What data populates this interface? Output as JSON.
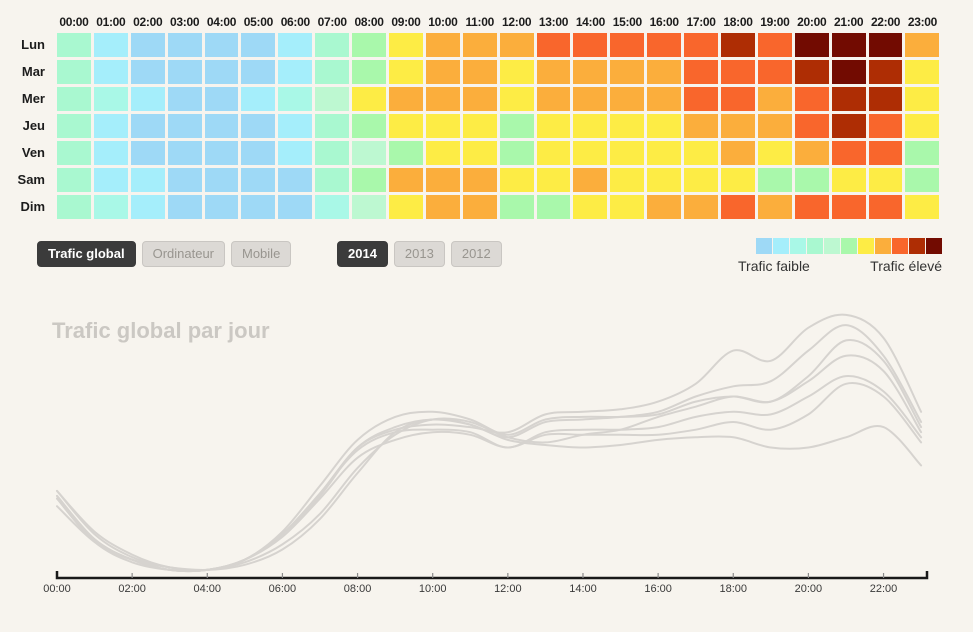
{
  "controls": {
    "dataset_buttons": [
      {
        "label": "Trafic global",
        "active": true
      },
      {
        "label": "Ordinateur",
        "active": false
      },
      {
        "label": "Mobile",
        "active": false
      }
    ],
    "year_buttons": [
      {
        "label": "2014",
        "active": true
      },
      {
        "label": "2013",
        "active": false
      },
      {
        "label": "2012",
        "active": false
      }
    ]
  },
  "legend": {
    "low_label": "Trafic faible",
    "high_label": "Trafic élevé"
  },
  "chart_data": [
    {
      "type": "heatmap",
      "x_categories": [
        "00:00",
        "01:00",
        "02:00",
        "03:00",
        "04:00",
        "05:00",
        "06:00",
        "07:00",
        "08:00",
        "09:00",
        "10:00",
        "11:00",
        "12:00",
        "13:00",
        "14:00",
        "15:00",
        "16:00",
        "17:00",
        "18:00",
        "19:00",
        "20:00",
        "21:00",
        "22:00",
        "23:00"
      ],
      "y_categories": [
        "Lun",
        "Mar",
        "Mer",
        "Jeu",
        "Ven",
        "Sam",
        "Dim"
      ],
      "palette": [
        "#9ed9f6",
        "#a5eefb",
        "#a9f8e7",
        "#a9f8d0",
        "#bdf8d1",
        "#a9f8ab",
        "#fdec45",
        "#fbae3c",
        "#f9662c",
        "#ae2d04",
        "#720b01"
      ],
      "legend_low": "Trafic faible",
      "legend_high": "Trafic élevé",
      "levels": [
        [
          3,
          1,
          0,
          0,
          0,
          0,
          1,
          3,
          5,
          6,
          7,
          7,
          7,
          8,
          8,
          8,
          8,
          8,
          9,
          8,
          10,
          10,
          10,
          7
        ],
        [
          3,
          1,
          0,
          0,
          0,
          0,
          1,
          3,
          5,
          6,
          7,
          7,
          6,
          7,
          7,
          7,
          7,
          8,
          8,
          8,
          9,
          10,
          9,
          6
        ],
        [
          3,
          2,
          1,
          0,
          0,
          1,
          2,
          4,
          6,
          7,
          7,
          7,
          6,
          7,
          7,
          7,
          7,
          8,
          8,
          7,
          8,
          9,
          9,
          6
        ],
        [
          3,
          1,
          0,
          0,
          0,
          0,
          1,
          3,
          5,
          6,
          6,
          6,
          5,
          6,
          6,
          6,
          6,
          7,
          7,
          7,
          8,
          9,
          8,
          6
        ],
        [
          3,
          1,
          0,
          0,
          0,
          0,
          1,
          3,
          4,
          5,
          6,
          6,
          5,
          6,
          6,
          6,
          6,
          6,
          7,
          6,
          7,
          8,
          8,
          5
        ],
        [
          3,
          1,
          1,
          0,
          0,
          0,
          0,
          3,
          5,
          7,
          7,
          7,
          6,
          6,
          7,
          6,
          6,
          6,
          6,
          5,
          5,
          6,
          6,
          5
        ],
        [
          3,
          2,
          1,
          0,
          0,
          0,
          0,
          2,
          4,
          6,
          7,
          7,
          5,
          5,
          6,
          6,
          7,
          7,
          8,
          7,
          8,
          8,
          8,
          6
        ]
      ]
    },
    {
      "type": "line",
      "title": "Trafic global par jour",
      "x_hours": [
        0,
        1,
        2,
        3,
        4,
        5,
        6,
        7,
        8,
        9,
        10,
        11,
        12,
        13,
        14,
        15,
        16,
        17,
        18,
        19,
        20,
        21,
        22,
        23
      ],
      "x_tick_labels": [
        "00:00",
        "02:00",
        "04:00",
        "06:00",
        "08:00",
        "10:00",
        "12:00",
        "14:00",
        "16:00",
        "18:00",
        "20:00",
        "22:00"
      ],
      "ylim": [
        0,
        110
      ],
      "grid": false,
      "legend_position": "none",
      "line_color": "#d6d3cf",
      "series": [
        {
          "name": "Lun",
          "values": [
            33,
            16,
            7,
            3,
            2,
            6,
            16,
            32,
            50,
            57,
            59,
            58,
            56,
            63,
            64,
            65,
            68,
            75,
            88,
            84,
            97,
            102,
            93,
            64
          ]
        },
        {
          "name": "Mar",
          "values": [
            31,
            14,
            6,
            2,
            2,
            6,
            16,
            31,
            50,
            58,
            61,
            59,
            54,
            60,
            61,
            62,
            64,
            70,
            74,
            76,
            88,
            98,
            86,
            60
          ]
        },
        {
          "name": "Mer",
          "values": [
            30,
            13,
            6,
            2,
            2,
            6,
            17,
            35,
            53,
            62,
            64,
            61,
            55,
            61,
            62,
            62,
            63,
            68,
            70,
            68,
            78,
            92,
            84,
            58
          ]
        },
        {
          "name": "Jeu",
          "values": [
            30,
            13,
            5,
            2,
            2,
            6,
            16,
            32,
            49,
            56,
            57,
            56,
            50,
            56,
            57,
            57,
            58,
            62,
            64,
            63,
            70,
            78,
            72,
            54
          ]
        },
        {
          "name": "Ven",
          "values": [
            31,
            14,
            6,
            2,
            2,
            6,
            15,
            30,
            46,
            53,
            56,
            55,
            50,
            55,
            55,
            55,
            55,
            57,
            60,
            57,
            63,
            75,
            70,
            52
          ]
        },
        {
          "name": "Sam",
          "values": [
            27,
            13,
            6,
            3,
            2,
            4,
            10,
            22,
            40,
            56,
            61,
            59,
            53,
            51,
            50,
            51,
            53,
            54,
            54,
            50,
            50,
            54,
            58,
            43
          ]
        },
        {
          "name": "Dim",
          "values": [
            33,
            17,
            8,
            3,
            2,
            5,
            12,
            24,
            42,
            55,
            61,
            60,
            54,
            52,
            55,
            57,
            62,
            66,
            70,
            68,
            76,
            86,
            80,
            56
          ]
        }
      ]
    }
  ]
}
